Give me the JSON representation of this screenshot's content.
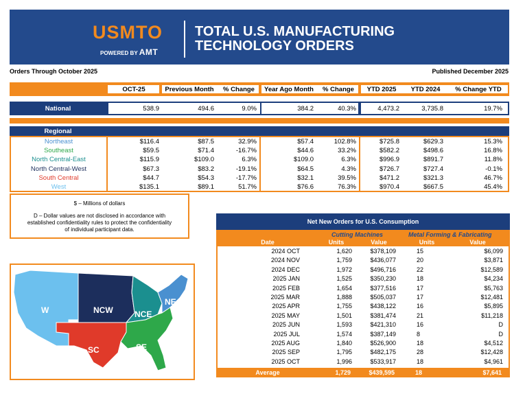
{
  "header": {
    "logo_text": "USMTO",
    "powered_by": "POWERED BY",
    "powered_brand": "AMT",
    "title_line1": "TOTAL U.S. MANUFACTURING",
    "title_line2": "TECHNOLOGY ORDERS"
  },
  "orders_through": "Orders Through October 2025",
  "published": "Published December 2025",
  "columns": [
    "OCT-25",
    "Previous Month",
    "% Change",
    "Year Ago Month",
    "% Change",
    "YTD 2025",
    "YTD 2024",
    "% Change YTD"
  ],
  "national": {
    "label": "National",
    "values": [
      "538.9",
      "494.6",
      "9.0%",
      "384.2",
      "40.3%",
      "4,473.2",
      "3,735.8",
      "19.7%"
    ]
  },
  "regional": {
    "label": "Regional",
    "rows": [
      {
        "name": "Northeast",
        "color": "#4a90d0",
        "values": [
          "$116.4",
          "$87.5",
          "32.9%",
          "$57.4",
          "102.8%",
          "$725.8",
          "$629.3",
          "15.3%"
        ]
      },
      {
        "name": "Southeast",
        "color": "#2ea84a",
        "values": [
          "$59.5",
          "$71.4",
          "-16.7%",
          "$44.6",
          "33.2%",
          "$582.2",
          "$498.6",
          "16.8%"
        ]
      },
      {
        "name": "North Central-East",
        "color": "#1b8f8f",
        "values": [
          "$115.9",
          "$109.0",
          "6.3%",
          "$109.0",
          "6.3%",
          "$996.9",
          "$891.7",
          "11.8%"
        ]
      },
      {
        "name": "North Central-West",
        "color": "#1c2e5c",
        "values": [
          "$67.3",
          "$83.2",
          "-19.1%",
          "$64.5",
          "4.3%",
          "$726.7",
          "$727.4",
          "-0.1%"
        ]
      },
      {
        "name": "South Central",
        "color": "#e03a2a",
        "values": [
          "$44.7",
          "$54.3",
          "-17.7%",
          "$32.1",
          "39.5%",
          "$471.2",
          "$321.3",
          "46.7%"
        ]
      },
      {
        "name": "West",
        "color": "#6cc0ee",
        "values": [
          "$135.1",
          "$89.1",
          "51.7%",
          "$76.6",
          "76.3%",
          "$970.4",
          "$667.5",
          "45.4%"
        ]
      }
    ]
  },
  "note": {
    "line1": "$ – Millions of dollars",
    "line2": "D – Dollar values are not disclosed in accordance with",
    "line3": "established confidentiality rules to protect the confidentiality",
    "line4": "of individual participant data."
  },
  "map_labels": {
    "w": "W",
    "ncw": "NCW",
    "nce": "NCE",
    "ne": "NE",
    "sc": "SC",
    "se": "SE"
  },
  "colors": {
    "navy": "#1c3e7c",
    "orange": "#f28a1e",
    "w": "#6cc0ee",
    "ncw": "#1c2e5c",
    "nce": "#1b8f8f",
    "ne": "#4a90d0",
    "sc": "#e03a2a",
    "se": "#2ea84a"
  },
  "net_new": {
    "title": "Net New Orders for U.S. Consumption",
    "group1": "Cutting Machines",
    "group2": "Metal Forming & Fabricating",
    "col_date": "Date",
    "col_units1": "Units",
    "col_value1": "Value",
    "col_units2": "Units",
    "col_value2": "Value",
    "rows": [
      [
        "2024 OCT",
        "1,620",
        "$378,109",
        "15",
        "$6,099"
      ],
      [
        "2024 NOV",
        "1,759",
        "$436,077",
        "20",
        "$3,871"
      ],
      [
        "2024 DEC",
        "1,972",
        "$496,716",
        "22",
        "$12,589"
      ],
      [
        "2025 JAN",
        "1,525",
        "$350,230",
        "18",
        "$4,234"
      ],
      [
        "2025 FEB",
        "1,654",
        "$377,516",
        "17",
        "$5,763"
      ],
      [
        "2025 MAR",
        "1,888",
        "$505,037",
        "17",
        "$12,481"
      ],
      [
        "2025 APR",
        "1,755",
        "$438,122",
        "16",
        "$5,895"
      ],
      [
        "2025 MAY",
        "1,501",
        "$381,474",
        "21",
        "$11,218"
      ],
      [
        "2025 JUN",
        "1,593",
        "$421,310",
        "16",
        "D"
      ],
      [
        "2025 JUL",
        "1,574",
        "$387,149",
        "8",
        "D"
      ],
      [
        "2025 AUG",
        "1,840",
        "$526,900",
        "18",
        "$4,512"
      ],
      [
        "2025 SEP",
        "1,795",
        "$482,175",
        "28",
        "$12,428"
      ],
      [
        "2025 OCT",
        "1,996",
        "$533,917",
        "18",
        "$4,961"
      ]
    ],
    "average": [
      "Average",
      "1,729",
      "$439,595",
      "18",
      "$7,641"
    ]
  }
}
